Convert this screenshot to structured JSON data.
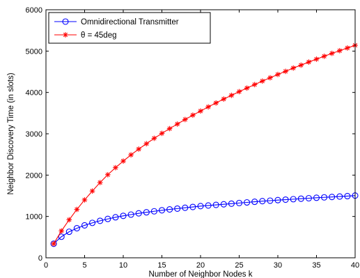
{
  "chart_data": {
    "type": "line",
    "title": "",
    "xlabel": "Number of Neighbor Nodes k",
    "ylabel": "Neighbor Discovery Time (in slots)",
    "xlim": [
      0,
      40
    ],
    "ylim": [
      0,
      6000
    ],
    "xticks": [
      0,
      5,
      10,
      15,
      20,
      25,
      30,
      35,
      40
    ],
    "yticks": [
      0,
      1000,
      2000,
      3000,
      4000,
      5000,
      6000
    ],
    "grid": false,
    "legend_position": "top-left",
    "x": [
      1,
      2,
      3,
      4,
      5,
      6,
      7,
      8,
      9,
      10,
      11,
      12,
      13,
      14,
      15,
      16,
      17,
      18,
      19,
      20,
      21,
      22,
      23,
      24,
      25,
      26,
      27,
      28,
      29,
      30,
      31,
      32,
      33,
      34,
      35,
      36,
      37,
      38,
      39,
      40
    ],
    "series": [
      {
        "name": "Omnidirectional Transmitter",
        "color": "#0000ff",
        "marker": "circle",
        "values": [
          340,
          510,
          630,
          715,
          785,
          845,
          895,
          940,
          980,
          1015,
          1045,
          1075,
          1100,
          1125,
          1150,
          1170,
          1190,
          1210,
          1230,
          1250,
          1265,
          1280,
          1295,
          1310,
          1325,
          1340,
          1355,
          1370,
          1382,
          1395,
          1407,
          1418,
          1430,
          1441,
          1452,
          1462,
          1472,
          1482,
          1492,
          1505
        ]
      },
      {
        "name": "θ = 45deg",
        "color": "#ff0000",
        "marker": "asterisk",
        "values": [
          340,
          650,
          920,
          1170,
          1400,
          1615,
          1820,
          2010,
          2180,
          2340,
          2490,
          2630,
          2760,
          2890,
          3010,
          3125,
          3235,
          3345,
          3450,
          3550,
          3650,
          3745,
          3840,
          3930,
          4020,
          4105,
          4190,
          4275,
          4355,
          4435,
          4510,
          4590,
          4660,
          4735,
          4805,
          4875,
          4945,
          5010,
          5075,
          5140
        ]
      }
    ]
  }
}
